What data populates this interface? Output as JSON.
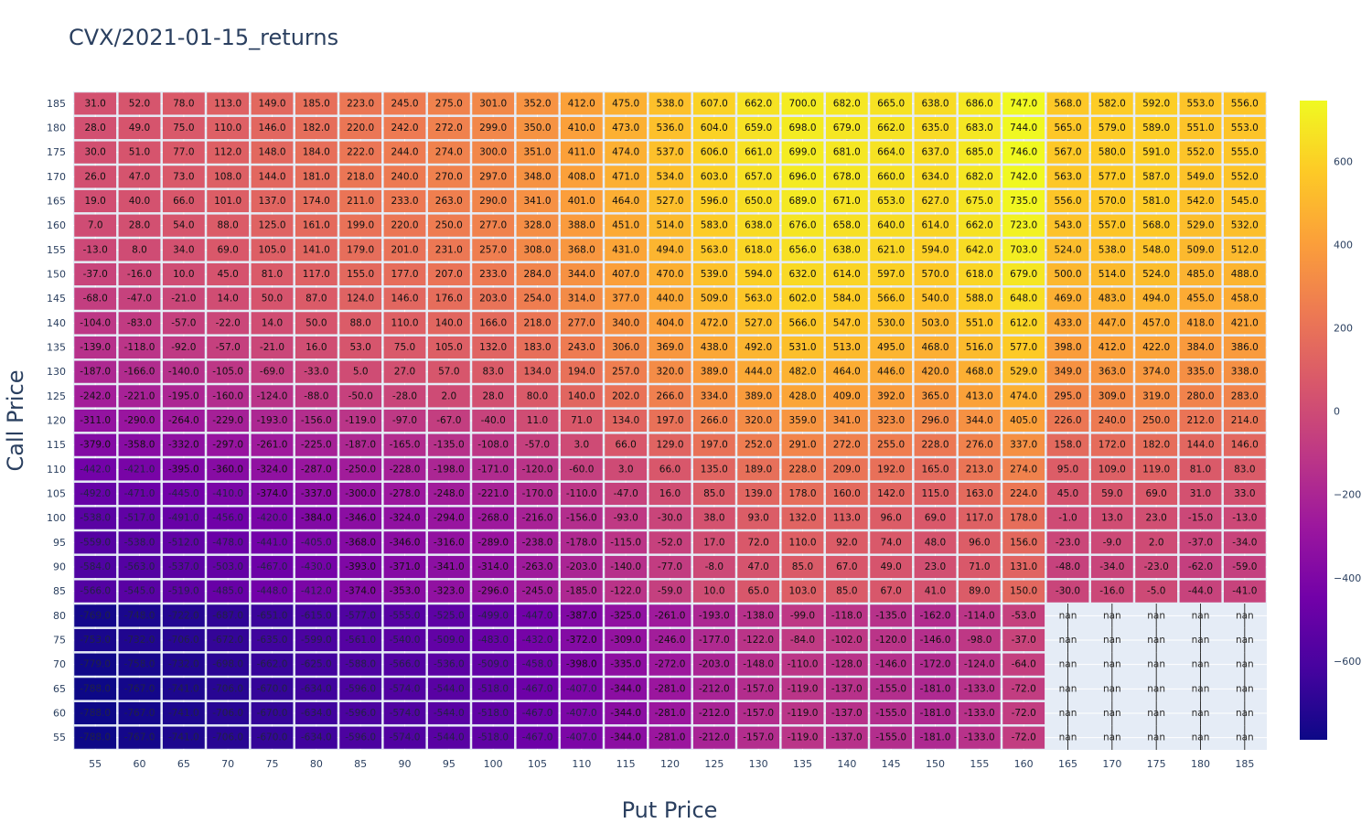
{
  "chart_data": {
    "type": "heatmap",
    "title": "CVX/2021-01-15_returns",
    "xlabel": "Put Price",
    "ylabel": "Call Price",
    "x": [
      55,
      60,
      65,
      70,
      75,
      80,
      85,
      90,
      95,
      100,
      105,
      110,
      115,
      120,
      125,
      130,
      135,
      140,
      145,
      150,
      155,
      160,
      165,
      170,
      175,
      180,
      185
    ],
    "y": [
      185,
      180,
      175,
      170,
      165,
      160,
      155,
      150,
      145,
      140,
      135,
      130,
      125,
      120,
      115,
      110,
      105,
      100,
      95,
      90,
      85,
      80,
      75,
      70,
      65,
      60,
      55
    ],
    "z": [
      [
        31,
        52,
        78,
        113,
        149,
        185,
        223,
        245,
        275,
        301,
        352,
        412,
        475,
        538,
        607,
        662,
        700,
        682,
        665,
        638,
        686,
        747,
        568,
        582,
        592,
        553,
        556
      ],
      [
        28,
        49,
        75,
        110,
        146,
        182,
        220,
        242,
        272,
        299,
        350,
        410,
        473,
        536,
        604,
        659,
        698,
        679,
        662,
        635,
        683,
        744,
        565,
        579,
        589,
        551,
        553
      ],
      [
        30,
        51,
        77,
        112,
        148,
        184,
        222,
        244,
        274,
        300,
        351,
        411,
        474,
        537,
        606,
        661,
        699,
        681,
        664,
        637,
        685,
        746,
        567,
        580,
        591,
        552,
        555
      ],
      [
        26,
        47,
        73,
        108,
        144,
        181,
        218,
        240,
        270,
        297,
        348,
        408,
        471,
        534,
        603,
        657,
        696,
        678,
        660,
        634,
        682,
        742,
        563,
        577,
        587,
        549,
        552
      ],
      [
        19,
        40,
        66,
        101,
        137,
        174,
        211,
        233,
        263,
        290,
        341,
        401,
        464,
        527,
        596,
        650,
        689,
        671,
        653,
        627,
        675,
        735,
        556,
        570,
        581,
        542,
        545
      ],
      [
        7,
        28,
        54,
        88,
        125,
        161,
        199,
        220,
        250,
        277,
        328,
        388,
        451,
        514,
        583,
        638,
        676,
        658,
        640,
        614,
        662,
        723,
        543,
        557,
        568,
        529,
        532
      ],
      [
        -13,
        8,
        34,
        69,
        105,
        141,
        179,
        201,
        231,
        257,
        308,
        368,
        431,
        494,
        563,
        618,
        656,
        638,
        621,
        594,
        642,
        703,
        524,
        538,
        548,
        509,
        512
      ],
      [
        -37,
        -16,
        10,
        45,
        81,
        117,
        155,
        177,
        207,
        233,
        284,
        344,
        407,
        470,
        539,
        594,
        632,
        614,
        597,
        570,
        618,
        679,
        500,
        514,
        524,
        485,
        488
      ],
      [
        -68,
        -47,
        -21,
        14,
        50,
        87,
        124,
        146,
        176,
        203,
        254,
        314,
        377,
        440,
        509,
        563,
        602,
        584,
        566,
        540,
        588,
        648,
        469,
        483,
        494,
        455,
        458
      ],
      [
        -104,
        -83,
        -57,
        -22,
        14,
        50,
        88,
        110,
        140,
        166,
        218,
        277,
        340,
        404,
        472,
        527,
        566,
        547,
        530,
        503,
        551,
        612,
        433,
        447,
        457,
        418,
        421
      ],
      [
        -139,
        -118,
        -92,
        -57,
        -21,
        16,
        53,
        75,
        105,
        132,
        183,
        243,
        306,
        369,
        438,
        492,
        531,
        513,
        495,
        468,
        516,
        577,
        398,
        412,
        422,
        384,
        386
      ],
      [
        -187,
        -166,
        -140,
        -105,
        -69,
        -33,
        5,
        27,
        57,
        83,
        134,
        194,
        257,
        320,
        389,
        444,
        482,
        464,
        446,
        420,
        468,
        529,
        349,
        363,
        374,
        335,
        338
      ],
      [
        -242,
        -221,
        -195,
        -160,
        -124,
        -88,
        -50,
        -28,
        2,
        28,
        80,
        140,
        202,
        266,
        334,
        389,
        428,
        409,
        392,
        365,
        413,
        474,
        295,
        309,
        319,
        280,
        283
      ],
      [
        -311,
        -290,
        -264,
        -229,
        -193,
        -156,
        -119,
        -97,
        -67,
        -40,
        11,
        71,
        134,
        197,
        266,
        320,
        359,
        341,
        323,
        296,
        344,
        405,
        226,
        240,
        250,
        212,
        214
      ],
      [
        -379,
        -358,
        -332,
        -297,
        -261,
        -225,
        -187,
        -165,
        -135,
        -108,
        -57,
        3,
        66,
        129,
        197,
        252,
        291,
        272,
        255,
        228,
        276,
        337,
        158,
        172,
        182,
        144,
        146
      ],
      [
        -442,
        -421,
        -395,
        -360,
        -324,
        -287,
        -250,
        -228,
        -198,
        -171,
        -120,
        -60,
        3,
        66,
        135,
        189,
        228,
        209,
        192,
        165,
        213,
        274,
        95,
        109,
        119,
        81,
        83
      ],
      [
        -492,
        -471,
        -445,
        -410,
        -374,
        -337,
        -300,
        -278,
        -248,
        -221,
        -170,
        -110,
        -47,
        16,
        85,
        139,
        178,
        160,
        142,
        115,
        163,
        224,
        45,
        59,
        69,
        31,
        33
      ],
      [
        -538,
        -517,
        -491,
        -456,
        -420,
        -384,
        -346,
        -324,
        -294,
        -268,
        -216,
        -156,
        -93,
        -30,
        38,
        93,
        132,
        113,
        96,
        69,
        117,
        178,
        -1,
        13,
        23,
        -15,
        -13
      ],
      [
        -559,
        -538,
        -512,
        -478,
        -441,
        -405,
        -368,
        -346,
        -316,
        -289,
        -238,
        -178,
        -115,
        -52,
        17,
        72,
        110,
        92,
        74,
        48,
        96,
        156,
        -23,
        -9,
        2,
        -37,
        -34
      ],
      [
        -584,
        -563,
        -537,
        -503,
        -467,
        -430,
        -393,
        -371,
        -341,
        -314,
        -263,
        -203,
        -140,
        -77,
        -8,
        47,
        85,
        67,
        49,
        23,
        71,
        131,
        -48,
        -34,
        -23,
        -62,
        -59
      ],
      [
        -566,
        -545,
        -519,
        -485,
        -448,
        -412,
        -374,
        -353,
        -323,
        -296,
        -245,
        -185,
        -122,
        -59,
        10,
        65,
        103,
        85,
        67,
        41,
        89,
        150,
        -30,
        -16,
        -5,
        -44,
        -41
      ],
      [
        -769,
        -748,
        -722,
        -687,
        -651,
        -615,
        -577,
        -555,
        -525,
        -499,
        -447,
        -387,
        -325,
        -261,
        -193,
        -138,
        -99,
        -118,
        -135,
        -162,
        -114,
        -53,
        null,
        null,
        null,
        null,
        null
      ],
      [
        -753,
        -732,
        -706,
        -672,
        -635,
        -599,
        -561,
        -540,
        -509,
        -483,
        -432,
        -372,
        -309,
        -246,
        -177,
        -122,
        -84,
        -102,
        -120,
        -146,
        -98,
        -37,
        null,
        null,
        null,
        null,
        null
      ],
      [
        -779,
        -758,
        -732,
        -698,
        -662,
        -625,
        -588,
        -566,
        -536,
        -509,
        -458,
        -398,
        -335,
        -272,
        -203,
        -148,
        -110,
        -128,
        -146,
        -172,
        -124,
        -64,
        null,
        null,
        null,
        null,
        null
      ],
      [
        -788,
        -767,
        -741,
        -706,
        -670,
        -634,
        -596,
        -574,
        -544,
        -518,
        -467,
        -407,
        -344,
        -281,
        -212,
        -157,
        -119,
        -137,
        -155,
        -181,
        -133,
        -72,
        null,
        null,
        null,
        null,
        null
      ],
      [
        -788,
        -767,
        -741,
        -706,
        -670,
        -634,
        -596,
        -574,
        -544,
        -518,
        -467,
        -407,
        -344,
        -281,
        -212,
        -157,
        -119,
        -137,
        -155,
        -181,
        -133,
        -72,
        null,
        null,
        null,
        null,
        null
      ],
      [
        -788,
        -767,
        -741,
        -706,
        -670,
        -634,
        -596,
        -574,
        -544,
        -518,
        -467,
        -407,
        -344,
        -281,
        -212,
        -157,
        -119,
        -137,
        -155,
        -181,
        -133,
        -72,
        null,
        null,
        null,
        null,
        null
      ]
    ],
    "missing_label": "nan",
    "value_format": "one-decimal",
    "zmin": -788,
    "zmax": 747,
    "colorscale": "plasma",
    "colorbar_ticks": [
      600,
      400,
      200,
      0,
      -200,
      -400,
      -600
    ],
    "colorbar_tick_labels": [
      "600",
      "400",
      "200",
      "0",
      "−200",
      "−400",
      "−600"
    ],
    "plot_background": "#e5ecf6",
    "grid": true
  }
}
